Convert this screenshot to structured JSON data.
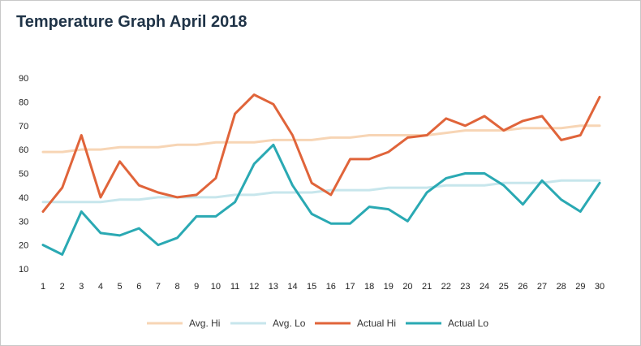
{
  "chart_data": {
    "type": "line",
    "title": "Temperature Graph April 2018",
    "xlabel": "",
    "ylabel": "",
    "x": [
      1,
      2,
      3,
      4,
      5,
      6,
      7,
      8,
      9,
      10,
      11,
      12,
      13,
      14,
      15,
      16,
      17,
      18,
      19,
      20,
      21,
      22,
      23,
      24,
      25,
      26,
      27,
      28,
      29,
      30
    ],
    "y_ticks": [
      10,
      20,
      30,
      40,
      50,
      60,
      70,
      80,
      90
    ],
    "ylim": [
      10,
      90
    ],
    "grid": false,
    "legend_position": "bottom",
    "series": [
      {
        "name": "Avg. Hi",
        "color": "#f7d5b5",
        "values": [
          59,
          59,
          60,
          60,
          61,
          61,
          61,
          62,
          62,
          63,
          63,
          63,
          64,
          64,
          64,
          65,
          65,
          66,
          66,
          66,
          66,
          67,
          68,
          68,
          68,
          69,
          69,
          69,
          70,
          70
        ]
      },
      {
        "name": "Avg. Lo",
        "color": "#c7e6ec",
        "values": [
          38,
          38,
          38,
          38,
          39,
          39,
          40,
          40,
          40,
          40,
          41,
          41,
          42,
          42,
          42,
          43,
          43,
          43,
          44,
          44,
          44,
          45,
          45,
          45,
          46,
          46,
          46,
          47,
          47,
          47
        ]
      },
      {
        "name": "Actual Hi",
        "color": "#e0643a",
        "values": [
          34,
          44,
          66,
          40,
          55,
          45,
          42,
          40,
          41,
          48,
          75,
          83,
          79,
          66,
          46,
          41,
          56,
          56,
          59,
          65,
          66,
          73,
          70,
          74,
          68,
          72,
          74,
          64,
          66,
          82
        ]
      },
      {
        "name": "Actual Lo",
        "color": "#2aa9b3",
        "values": [
          20,
          16,
          34,
          25,
          24,
          27,
          20,
          23,
          32,
          32,
          38,
          54,
          62,
          45,
          33,
          29,
          29,
          36,
          35,
          30,
          42,
          48,
          50,
          50,
          45,
          37,
          47,
          39,
          34,
          46
        ]
      }
    ]
  }
}
